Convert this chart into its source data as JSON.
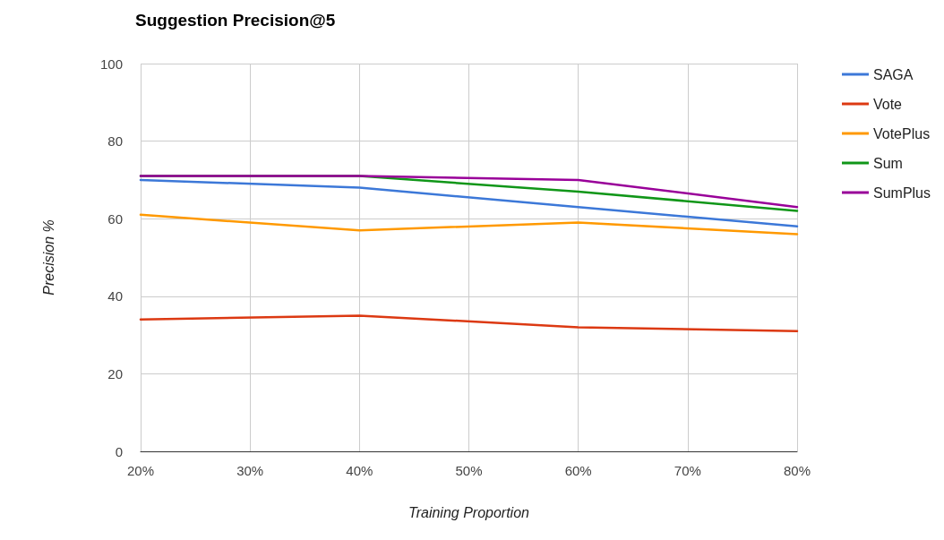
{
  "chart_data": {
    "type": "line",
    "title": "Suggestion Precision@5",
    "xlabel": "Training Proportion",
    "ylabel": "Precision %",
    "x": [
      20,
      40,
      60,
      80
    ],
    "series": [
      {
        "name": "SAGA",
        "color": "#3c78d8",
        "values": [
          70,
          68,
          63,
          58
        ]
      },
      {
        "name": "Vote",
        "color": "#dc3912",
        "values": [
          34,
          35,
          32,
          31
        ]
      },
      {
        "name": "VotePlus",
        "color": "#ff9900",
        "values": [
          61,
          57,
          59,
          56
        ]
      },
      {
        "name": "Sum",
        "color": "#109618",
        "values": [
          71,
          71,
          67,
          62
        ]
      },
      {
        "name": "SumPlus",
        "color": "#990099",
        "values": [
          71,
          71,
          70,
          63
        ]
      }
    ],
    "xlim": [
      20,
      80
    ],
    "xticks": [
      {
        "value": 20,
        "label": "20%"
      },
      {
        "value": 30,
        "label": "30%"
      },
      {
        "value": 40,
        "label": "40%"
      },
      {
        "value": 50,
        "label": "50%"
      },
      {
        "value": 60,
        "label": "60%"
      },
      {
        "value": 70,
        "label": "70%"
      },
      {
        "value": 80,
        "label": "80%"
      }
    ],
    "ylim": [
      0,
      100
    ],
    "yticks": [
      0,
      20,
      40,
      60,
      80,
      100
    ],
    "grid": true,
    "legend": "right",
    "marker": "none",
    "line_style": "solid"
  }
}
